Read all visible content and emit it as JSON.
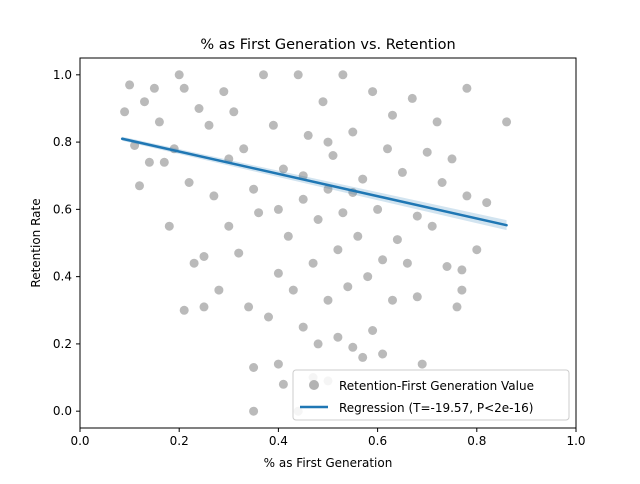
{
  "chart_data": {
    "type": "scatter",
    "title": "% as First Generation vs. Retention",
    "xlabel": "% as First Generation",
    "ylabel": "Retention Rate",
    "xlim": [
      0.0,
      1.0
    ],
    "ylim": [
      -0.05,
      1.05
    ],
    "xticks": [
      0.0,
      0.2,
      0.4,
      0.6,
      0.8,
      1.0
    ],
    "xtick_labels": [
      "0.0",
      "0.2",
      "0.4",
      "0.6",
      "0.8",
      "1.0"
    ],
    "yticks": [
      0.0,
      0.2,
      0.4,
      0.6,
      0.8,
      1.0
    ],
    "ytick_labels": [
      "0.0",
      "0.2",
      "0.4",
      "0.6",
      "0.8",
      "1.0"
    ],
    "grid": false,
    "legend_position": "lower-right",
    "series": [
      {
        "name": "Retention-First Generation Value",
        "kind": "scatter",
        "color": "#b3b3b3",
        "points": [
          [
            0.09,
            0.89
          ],
          [
            0.1,
            0.97
          ],
          [
            0.11,
            0.79
          ],
          [
            0.12,
            0.67
          ],
          [
            0.13,
            0.92
          ],
          [
            0.14,
            0.74
          ],
          [
            0.15,
            0.96
          ],
          [
            0.16,
            0.86
          ],
          [
            0.17,
            0.74
          ],
          [
            0.18,
            0.55
          ],
          [
            0.19,
            0.78
          ],
          [
            0.2,
            1.0
          ],
          [
            0.21,
            0.3
          ],
          [
            0.21,
            0.96
          ],
          [
            0.22,
            0.68
          ],
          [
            0.23,
            0.44
          ],
          [
            0.24,
            0.9
          ],
          [
            0.25,
            0.31
          ],
          [
            0.25,
            0.46
          ],
          [
            0.26,
            0.85
          ],
          [
            0.27,
            0.64
          ],
          [
            0.28,
            0.36
          ],
          [
            0.29,
            0.95
          ],
          [
            0.3,
            0.55
          ],
          [
            0.31,
            0.89
          ],
          [
            0.32,
            0.47
          ],
          [
            0.33,
            0.78
          ],
          [
            0.34,
            0.31
          ],
          [
            0.35,
            0.66
          ],
          [
            0.35,
            0.0
          ],
          [
            0.35,
            0.13
          ],
          [
            0.36,
            0.59
          ],
          [
            0.37,
            1.0
          ],
          [
            0.38,
            0.28
          ],
          [
            0.39,
            0.85
          ],
          [
            0.4,
            0.41
          ],
          [
            0.4,
            0.14
          ],
          [
            0.41,
            0.72
          ],
          [
            0.41,
            0.08
          ],
          [
            0.42,
            0.52
          ],
          [
            0.43,
            0.36
          ],
          [
            0.44,
            1.0
          ],
          [
            0.44,
            0.0
          ],
          [
            0.45,
            0.63
          ],
          [
            0.45,
            0.25
          ],
          [
            0.46,
            0.82
          ],
          [
            0.47,
            0.44
          ],
          [
            0.47,
            0.1
          ],
          [
            0.48,
            0.57
          ],
          [
            0.48,
            0.2
          ],
          [
            0.49,
            0.92
          ],
          [
            0.5,
            0.33
          ],
          [
            0.5,
            0.09
          ],
          [
            0.5,
            0.66
          ],
          [
            0.51,
            0.76
          ],
          [
            0.52,
            0.48
          ],
          [
            0.52,
            0.22
          ],
          [
            0.53,
            1.0
          ],
          [
            0.53,
            0.59
          ],
          [
            0.54,
            0.37
          ],
          [
            0.55,
            0.83
          ],
          [
            0.55,
            0.19
          ],
          [
            0.56,
            0.52
          ],
          [
            0.57,
            0.16
          ],
          [
            0.57,
            0.69
          ],
          [
            0.58,
            0.4
          ],
          [
            0.59,
            0.95
          ],
          [
            0.59,
            0.24
          ],
          [
            0.6,
            0.6
          ],
          [
            0.61,
            0.45
          ],
          [
            0.61,
            0.17
          ],
          [
            0.62,
            0.78
          ],
          [
            0.63,
            0.33
          ],
          [
            0.63,
            0.88
          ],
          [
            0.64,
            0.51
          ],
          [
            0.65,
            0.71
          ],
          [
            0.66,
            0.44
          ],
          [
            0.67,
            0.93
          ],
          [
            0.68,
            0.58
          ],
          [
            0.68,
            0.34
          ],
          [
            0.69,
            0.14
          ],
          [
            0.7,
            0.77
          ],
          [
            0.71,
            0.55
          ],
          [
            0.72,
            0.86
          ],
          [
            0.73,
            0.68
          ],
          [
            0.74,
            0.43
          ],
          [
            0.75,
            0.75
          ],
          [
            0.76,
            0.31
          ],
          [
            0.77,
            0.36
          ],
          [
            0.77,
            0.42
          ],
          [
            0.78,
            0.64
          ],
          [
            0.78,
            0.96
          ],
          [
            0.8,
            0.48
          ],
          [
            0.82,
            0.62
          ],
          [
            0.86,
            0.86
          ],
          [
            0.45,
            0.7
          ],
          [
            0.5,
            0.8
          ],
          [
            0.55,
            0.65
          ],
          [
            0.4,
            0.6
          ],
          [
            0.3,
            0.75
          ]
        ]
      },
      {
        "name": "Regression (T=-19.57, P<2e-16)",
        "kind": "line",
        "color": "#1f77b4",
        "x": [
          0.085,
          0.86
        ],
        "y": [
          0.81,
          0.553
        ]
      }
    ]
  }
}
